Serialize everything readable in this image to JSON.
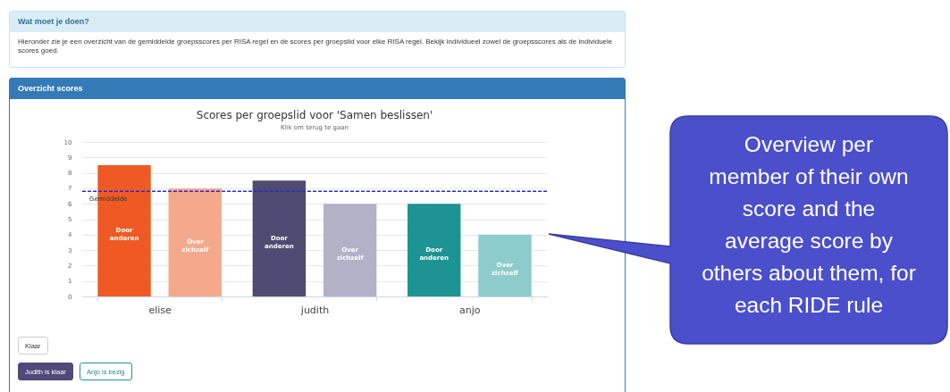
{
  "chart_data": {
    "type": "bar",
    "title": "Scores per groepslid voor 'Samen beslissen'",
    "subtitle": "Klik om terug te gaan",
    "categories": [
      "elise",
      "judith",
      "anjo"
    ],
    "series": [
      {
        "name": "Door anderen",
        "colors": [
          "#ef5a24",
          "#4e4a72",
          "#1e9394"
        ],
        "values": [
          8.5,
          7.5,
          6
        ]
      },
      {
        "name": "Over zichzelf",
        "colors": [
          "#f4a98c",
          "#b3b1c8",
          "#8ecbcb"
        ],
        "values": [
          7,
          6,
          4
        ]
      }
    ],
    "ylim": [
      0,
      10
    ],
    "yticks": [
      0,
      1,
      2,
      3,
      4,
      5,
      6,
      7,
      8,
      9,
      10
    ],
    "grid": "y",
    "ref_lines": [
      {
        "axis": "y",
        "value": 6.8,
        "label": "Gemiddelde",
        "color": "#2a2ad0",
        "line_style": "dashed"
      }
    ],
    "annotations": [
      "Wat moet je doen?",
      "Hieronder zie je een overzicht van de gemiddelde groepsscores per RISA regel en de scores per groepslid voor elke RISA regel. Bekijk individueel zowel de groepsscores als de individuele scores goed.",
      "Overzicht scores",
      "Klaar",
      "Judith is klaar",
      "Anjo is bezig",
      "Overview per member of their own score and the average score by others about them, for each RIDE rule"
    ]
  }
}
